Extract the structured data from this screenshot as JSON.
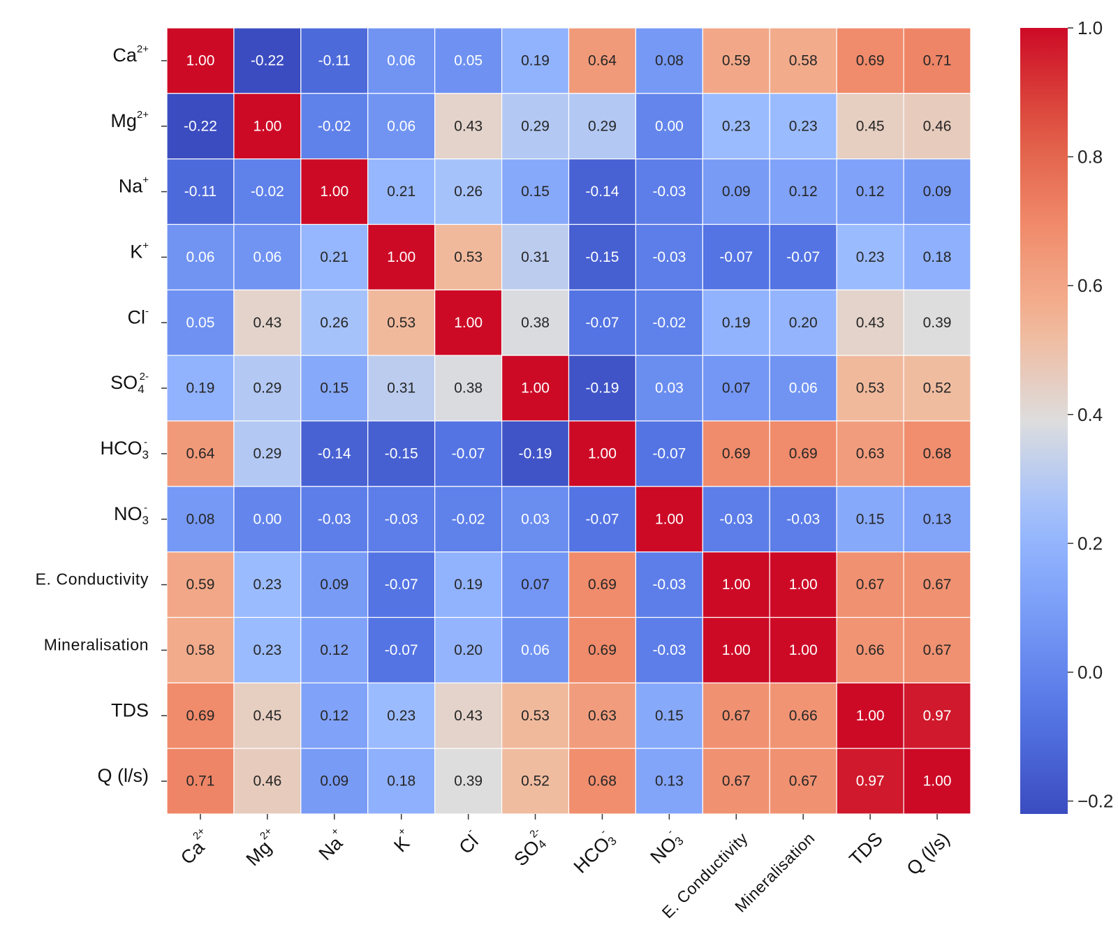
{
  "chart_data": {
    "type": "heatmap",
    "title": "",
    "xlabel": "",
    "ylabel": "",
    "labels": [
      {
        "base": "Ca",
        "sup": "2+",
        "sub": ""
      },
      {
        "base": "Mg",
        "sup": "2+",
        "sub": ""
      },
      {
        "base": "Na",
        "sup": "+",
        "sub": ""
      },
      {
        "base": "K",
        "sup": "+",
        "sub": ""
      },
      {
        "base": "Cl",
        "sup": "-",
        "sub": ""
      },
      {
        "base": "SO",
        "sup": "2-",
        "sub": "4"
      },
      {
        "base": "HCO",
        "sup": "-",
        "sub": "3"
      },
      {
        "base": "NO",
        "sup": "-",
        "sub": "3"
      },
      {
        "base": "E. Conductivity",
        "sup": "",
        "sub": ""
      },
      {
        "base": "Mineralisation",
        "sup": "",
        "sub": ""
      },
      {
        "base": "TDS",
        "sup": "",
        "sub": ""
      },
      {
        "base": "Q (l/s)",
        "sup": "",
        "sub": ""
      }
    ],
    "matrix": [
      [
        1.0,
        -0.22,
        -0.11,
        0.06,
        0.05,
        0.19,
        0.64,
        0.08,
        0.59,
        0.58,
        0.69,
        0.71
      ],
      [
        -0.22,
        1.0,
        -0.02,
        0.06,
        0.43,
        0.29,
        0.29,
        -0.0,
        0.23,
        0.23,
        0.45,
        0.46
      ],
      [
        -0.11,
        -0.02,
        1.0,
        0.21,
        0.26,
        0.15,
        -0.14,
        -0.03,
        0.09,
        0.12,
        0.12,
        0.09
      ],
      [
        0.06,
        0.06,
        0.21,
        1.0,
        0.53,
        0.31,
        -0.15,
        -0.03,
        -0.07,
        -0.07,
        0.23,
        0.18
      ],
      [
        0.05,
        0.43,
        0.26,
        0.53,
        1.0,
        0.38,
        -0.07,
        -0.02,
        0.19,
        0.2,
        0.43,
        0.39
      ],
      [
        0.19,
        0.29,
        0.15,
        0.31,
        0.38,
        1.0,
        -0.19,
        0.03,
        0.07,
        0.06,
        0.53,
        0.52
      ],
      [
        0.64,
        0.29,
        -0.14,
        -0.15,
        -0.07,
        -0.19,
        1.0,
        -0.07,
        0.69,
        0.69,
        0.63,
        0.68
      ],
      [
        0.08,
        -0.0,
        -0.03,
        -0.03,
        -0.02,
        0.03,
        -0.07,
        1.0,
        -0.03,
        -0.03,
        0.15,
        0.13
      ],
      [
        0.59,
        0.23,
        0.09,
        -0.07,
        0.19,
        0.07,
        0.69,
        -0.03,
        1.0,
        1.0,
        0.67,
        0.67
      ],
      [
        0.58,
        0.23,
        0.12,
        -0.07,
        0.2,
        0.06,
        0.69,
        -0.03,
        1.0,
        1.0,
        0.66,
        0.67
      ],
      [
        0.69,
        0.45,
        0.12,
        0.23,
        0.43,
        0.53,
        0.63,
        0.15,
        0.67,
        0.66,
        1.0,
        0.97
      ],
      [
        0.71,
        0.46,
        0.09,
        0.18,
        0.39,
        0.52,
        0.68,
        0.13,
        0.67,
        0.67,
        0.97,
        1.0
      ]
    ],
    "value_format": "2 decimals",
    "colorbar": {
      "colormap": "coolwarm",
      "vmin": -0.22,
      "vmax": 1.0,
      "ticks": [
        1.0,
        0.8,
        0.6,
        0.4,
        0.2,
        0.0,
        -0.2
      ],
      "tick_labels": [
        "1.0",
        "0.8",
        "0.6",
        "0.4",
        "0.2",
        "0.0",
        "−0.2"
      ],
      "position": "right"
    }
  }
}
